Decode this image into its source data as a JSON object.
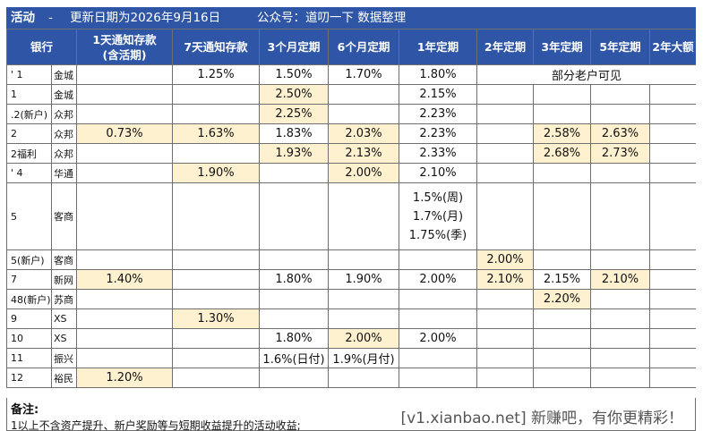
{
  "title": {
    "activity": "活动",
    "separator": "-",
    "update": "更新日期为2026年9月16日",
    "account": "公众号：道叨一下 数据整理"
  },
  "headers": [
    "银行",
    "1天通知存款\n(含活期)",
    "7天通知存款",
    "3个月定期",
    "6个月定期",
    "1年定期",
    "2年定期",
    "3年定期",
    "5年定期",
    "2年大额"
  ],
  "rows": [
    {
      "bank": "' 1",
      "name": "金城",
      "cells": [
        "",
        "1.25%",
        "1.50%",
        "1.70%",
        "1.80%"
      ],
      "note": "部分老户可见"
    },
    {
      "bank": "1",
      "name": "金城",
      "cells": [
        "",
        "",
        "2.50%",
        "",
        "2.15%",
        "",
        "",
        "",
        ""
      ]
    },
    {
      "bank": ".2(新户)",
      "name": "众邦",
      "cells": [
        "",
        "",
        "2.25%",
        "",
        "2.23%",
        "",
        "",
        "",
        ""
      ]
    },
    {
      "bank": "2",
      "name": "众邦",
      "cells": [
        "0.73%",
        "1.63%",
        "1.83%",
        "2.03%",
        "2.23%",
        "",
        "2.58%",
        "2.63%",
        ""
      ]
    },
    {
      "bank": "2福利",
      "name": "众邦",
      "cells": [
        "",
        "",
        "1.93%",
        "2.13%",
        "2.33%",
        "",
        "2.68%",
        "2.73%",
        ""
      ]
    },
    {
      "bank": "' 4",
      "name": "华通",
      "cells": [
        "",
        "1.90%",
        "",
        "2.00%",
        "2.10%"
      ]
    },
    {
      "bank": "5",
      "name": "客商",
      "cells": [
        "",
        "",
        "",
        "",
        "1.5%(周)\n1.7%(月)\n1.75%(季)",
        "",
        "",
        "",
        ""
      ]
    },
    {
      "bank": "5(新户)",
      "name": "客商",
      "cells": [
        "",
        "",
        "",
        "",
        "",
        "2.00%",
        "",
        "",
        ""
      ]
    },
    {
      "bank": "7",
      "name": "新网",
      "cells": [
        "1.40%",
        "",
        "1.80%",
        "1.90%",
        "2.00%",
        "2.10%",
        "2.15%",
        "2.10%",
        ""
      ]
    },
    {
      "bank": "48(新户)",
      "name": "苏商",
      "cells": [
        "",
        "",
        "",
        "",
        "",
        "",
        "2.20%",
        "",
        ""
      ]
    },
    {
      "bank": "9",
      "name": "XS",
      "cells": [
        "",
        "1.30%",
        "",
        "",
        "",
        "",
        "",
        "",
        ""
      ]
    },
    {
      "bank": "10",
      "name": "XS",
      "cells": [
        "",
        "",
        "1.80%",
        "2.00%",
        "2.00%",
        "",
        "",
        "",
        ""
      ]
    },
    {
      "bank": "11",
      "name": "振兴",
      "cells": [
        "",
        "",
        "1.6%(日付)",
        "1.9%(月付)",
        "",
        "",
        "",
        "",
        ""
      ]
    },
    {
      "bank": "12",
      "name": "裕民",
      "cells": [
        "1.20%",
        "",
        "",
        "",
        "",
        "",
        "",
        "",
        ""
      ]
    }
  ],
  "notes": {
    "title": "备注:",
    "line1": "1以上不含资产提升、新户奖励等与短期收益提升的活动收益;"
  },
  "watermark": "[v1.xianbao.net] 新赚吧，有你更精彩！",
  "colors": {
    "header_bg": "#2e55a6",
    "highlight": "#fdf1cf"
  }
}
